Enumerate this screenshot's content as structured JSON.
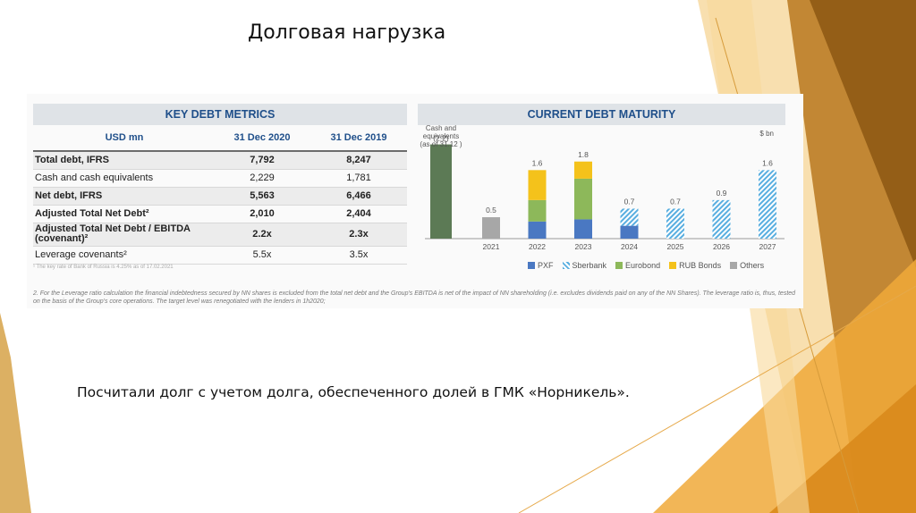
{
  "slide": {
    "title": "Долговая нагрузка",
    "body_text": "Посчитали долг с учетом долга, обеспеченного долей в ГМК «Норникель».",
    "footnote": "2. For the Leverage ratio calculation the financial indebtedness secured by NN shares is excluded from the total net debt and the Group's EBITDA is net of the impact of NN shareholding (i.e. excludes dividends paid on any of the NN Shares). The leverage ratio is, thus, tested on the basis of the Group's core operations. The target level was renegotiated with the lenders in 1h2020;",
    "faded_note": "¹ The key rate of Bank of Russia is 4.25% as of 17.02.2021"
  },
  "colors": {
    "accent_gold": "#e8a542",
    "dark_gold": "#c07a15",
    "header_blue": "#1f4f8a"
  },
  "table": {
    "title": "KEY DEBT METRICS",
    "columns": [
      "USD mn",
      "31 Dec 2020",
      "31 Dec 2019"
    ],
    "rows": [
      {
        "label": "Total debt, IFRS",
        "v2020": "7,792",
        "v2019": "8,247"
      },
      {
        "label": "Cash and cash equivalents",
        "v2020": "2,229",
        "v2019": "1,781"
      },
      {
        "label": "Net debt, IFRS",
        "v2020": "5,563",
        "v2019": "6,466"
      },
      {
        "label": "Adjusted Total Net Debt²",
        "v2020": "2,010",
        "v2019": "2,404"
      },
      {
        "label": "Adjusted Total Net Debt / EBITDA (covenant)²",
        "v2020": "2.2x",
        "v2019": "2.3x"
      },
      {
        "label": "Leverage covenants²",
        "v2020": "5.5x",
        "v2019": "3.5x"
      }
    ]
  },
  "chart_data": {
    "type": "bar",
    "title": "CURRENT DEBT MATURITY",
    "unit_label": "$ bn",
    "cash_label": "Cash and equivalents (as of 31.12 )",
    "cash_value": 2.2,
    "cash_value_label": "(2.2)",
    "categories": [
      "2021",
      "2022",
      "2023",
      "2024",
      "2025",
      "2026",
      "2027"
    ],
    "totals": [
      0.5,
      1.6,
      1.8,
      0.7,
      0.7,
      0.9,
      1.6
    ],
    "total_labels": [
      "0.5",
      "1.6",
      "1.8",
      "0.7",
      "0.7",
      "0.9",
      "1.6"
    ],
    "series": [
      {
        "name": "PXF",
        "color": "#4a78c2",
        "values": [
          0,
          0.4,
          0.45,
          0.3,
          0,
          0,
          0
        ]
      },
      {
        "name": "Sberbank",
        "color": "#58aee0",
        "values": [
          0,
          0,
          0,
          0.4,
          0.7,
          0.9,
          1.6
        ]
      },
      {
        "name": "Eurobond",
        "color": "#8db85a",
        "values": [
          0,
          0.5,
          0.95,
          0,
          0,
          0,
          0
        ]
      },
      {
        "name": "RUB Bonds",
        "color": "#f4c21b",
        "values": [
          0,
          0.7,
          0.4,
          0,
          0,
          0,
          0
        ]
      },
      {
        "name": "Others",
        "color": "#a7a7a7",
        "values": [
          0.5,
          0,
          0,
          0,
          0,
          0,
          0
        ]
      }
    ],
    "cash_color": "#5c7a55",
    "ylim": [
      0,
      2.4
    ]
  }
}
